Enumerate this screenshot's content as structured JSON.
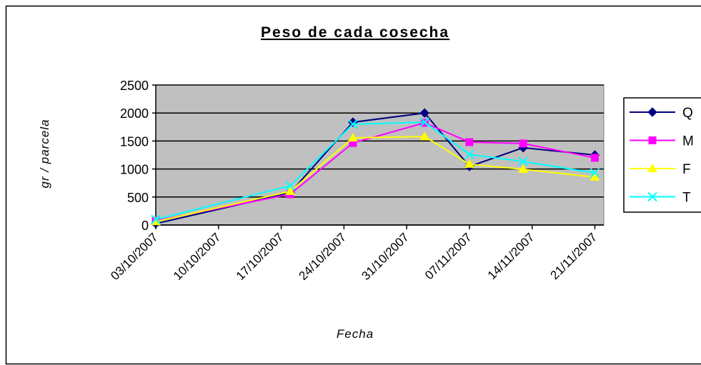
{
  "chart_data": {
    "type": "line",
    "title": "Peso de cada cosecha",
    "x_label": "Fecha",
    "y_label": "gr / parcela",
    "x": [
      "2007-10-03",
      "2007-10-18",
      "2007-10-25",
      "2007-11-02",
      "2007-11-07",
      "2007-11-13",
      "2007-11-21"
    ],
    "series": [
      {
        "name": "Q",
        "color": "#000080",
        "marker": "diamond",
        "values": [
          25,
          575,
          1835,
          2000,
          1045,
          1380,
          1250
        ]
      },
      {
        "name": "M",
        "color": "#ff00ff",
        "marker": "square",
        "values": [
          75,
          550,
          1465,
          1825,
          1480,
          1455,
          1200
        ]
      },
      {
        "name": "F",
        "color": "#ffff00",
        "marker": "triangle",
        "values": [
          60,
          600,
          1555,
          1580,
          1085,
          995,
          855
        ]
      },
      {
        "name": "T",
        "color": "#00ffff",
        "marker": "x",
        "values": [
          100,
          700,
          1800,
          1835,
          1260,
          1135,
          930
        ]
      }
    ],
    "xlim": [
      "2007-10-03",
      "2007-11-22"
    ],
    "xticks": [
      {
        "value": "2007-10-03",
        "label": "03/10/2007"
      },
      {
        "value": "2007-10-10",
        "label": "10/10/2007"
      },
      {
        "value": "2007-10-17",
        "label": "17/10/2007"
      },
      {
        "value": "2007-10-24",
        "label": "24/10/2007"
      },
      {
        "value": "2007-10-31",
        "label": "31/10/2007"
      },
      {
        "value": "2007-11-07",
        "label": "07/11/2007"
      },
      {
        "value": "2007-11-14",
        "label": "14/11/2007"
      },
      {
        "value": "2007-11-21",
        "label": "21/11/2007"
      }
    ],
    "ylim": [
      0,
      2500
    ],
    "yticks": [
      0,
      500,
      1000,
      1500,
      2000,
      2500
    ],
    "grid": true,
    "legend": "right",
    "plot_background": "#c0c0c0"
  }
}
